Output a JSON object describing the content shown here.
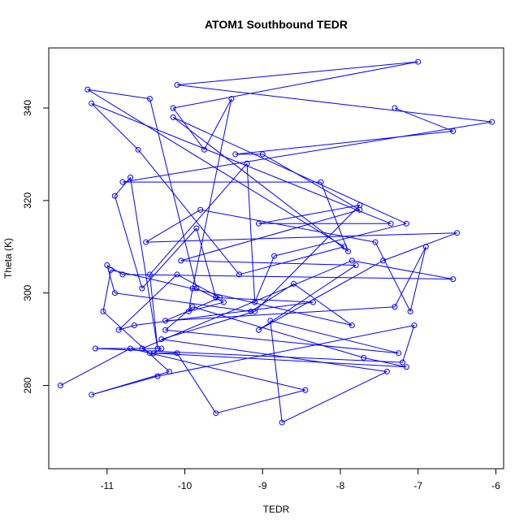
{
  "chart_data": {
    "type": "line",
    "title": "ATOM1 Southbound TEDR",
    "xlabel": "TEDR",
    "ylabel": "Theta (K)",
    "xlim": [
      -11.75,
      -5.9
    ],
    "ylim": [
      262,
      353
    ],
    "x_ticks": [
      -11,
      -10,
      -9,
      -8,
      -7,
      -6
    ],
    "y_ticks": [
      280,
      300,
      320,
      340
    ],
    "grid": false,
    "legend": "none",
    "style": "points and connecting lines",
    "color": "#0000ff",
    "x": [
      -11.6,
      -10.7,
      -8.45,
      -9.6,
      -10.1,
      -10.45,
      -10.55,
      -7.85,
      -6.55,
      -10.8,
      -11.0,
      -10.9,
      -9.15,
      -8.6,
      -7.85,
      -10.95,
      -11.05,
      -10.2,
      -11.2,
      -10.35,
      -7.05,
      -7.2,
      -11.15,
      -10.3,
      -10.4,
      -7.15,
      -7.7,
      -9.9,
      -10.25,
      -7.25,
      -8.9,
      -8.75,
      -7.4,
      -10.3,
      -9.1,
      -7.75,
      -9.05,
      -7.35,
      -11.2,
      -10.6,
      -9.3,
      -7.95,
      -11.25,
      -10.45,
      -9.85,
      -9.5,
      -9.95,
      -9.9,
      -9.4,
      -9.75,
      -10.15,
      -7.0,
      -10.1,
      -6.05,
      -10.8,
      -8.25,
      -7.9,
      -10.15,
      -7.15,
      -8.85,
      -9.1,
      -9.2,
      -10.45,
      -10.35,
      -10.7,
      -10.9,
      -10.55,
      -9.85,
      -9.6,
      -8.35,
      -10.65,
      -10.85,
      -10.1,
      -9.55,
      -10.25,
      -7.3,
      -6.9,
      -7.1,
      -7.55,
      -9.8,
      -10.5,
      -6.5,
      -7.45,
      -9.05,
      -7.8,
      -10.05,
      -7.75,
      -9.0,
      -9.35,
      -6.55,
      -7.3
    ],
    "y": [
      280,
      288,
      279,
      274,
      287,
      287,
      288,
      307,
      303,
      304,
      306,
      300,
      296,
      302,
      293,
      305,
      296,
      283,
      278,
      282,
      293,
      285,
      288,
      288,
      287,
      284,
      286,
      297,
      292,
      287,
      294,
      272,
      283,
      290,
      296,
      319,
      315,
      315,
      341,
      331,
      304,
      310,
      344,
      342,
      301,
      298,
      296,
      301,
      342,
      331,
      340,
      350,
      345,
      337,
      324,
      324,
      309,
      338,
      315,
      308,
      298,
      328,
      304,
      288,
      325,
      321,
      301,
      314,
      299,
      298,
      293,
      292,
      304,
      299,
      294,
      297,
      310,
      296,
      311,
      318,
      311,
      313,
      307,
      292,
      306,
      307,
      318,
      330,
      330,
      335,
      340
    ]
  }
}
